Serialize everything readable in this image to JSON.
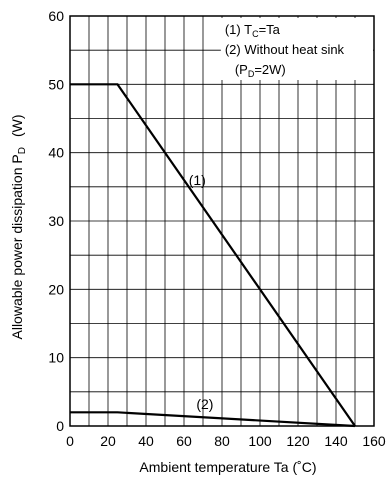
{
  "chart_data": {
    "type": "line",
    "title": "",
    "xlabel": "Ambient temperature   Ta   (˚C)",
    "ylabel": "Allowable power dissipation   P",
    "ylabel_sub": "D",
    "ylabel_unit": "(W)",
    "xlim": [
      0,
      160
    ],
    "ylim": [
      0,
      60
    ],
    "x_ticks": [
      0,
      20,
      40,
      60,
      80,
      100,
      120,
      140,
      160
    ],
    "y_ticks": [
      0,
      10,
      20,
      30,
      40,
      50,
      60
    ],
    "grid": true,
    "series": [
      {
        "name": "(1)",
        "x": [
          0,
          25,
          150
        ],
        "y": [
          50,
          50,
          0
        ]
      },
      {
        "name": "(2)",
        "x": [
          0,
          25,
          150
        ],
        "y": [
          2,
          2,
          0
        ]
      }
    ],
    "annotations": [
      {
        "text": "(1)",
        "x": 67,
        "y": 35.3
      },
      {
        "text": "(2)",
        "x": 71,
        "y": 2.5
      }
    ],
    "legend": {
      "placement": "top-right",
      "line1": {
        "pre": "(1) T",
        "sub": "C",
        "post": "=Ta"
      },
      "line2": "(2) Without heat sink",
      "line3": {
        "pre": "(P",
        "sub": "D",
        "post": "=2W)"
      }
    }
  }
}
